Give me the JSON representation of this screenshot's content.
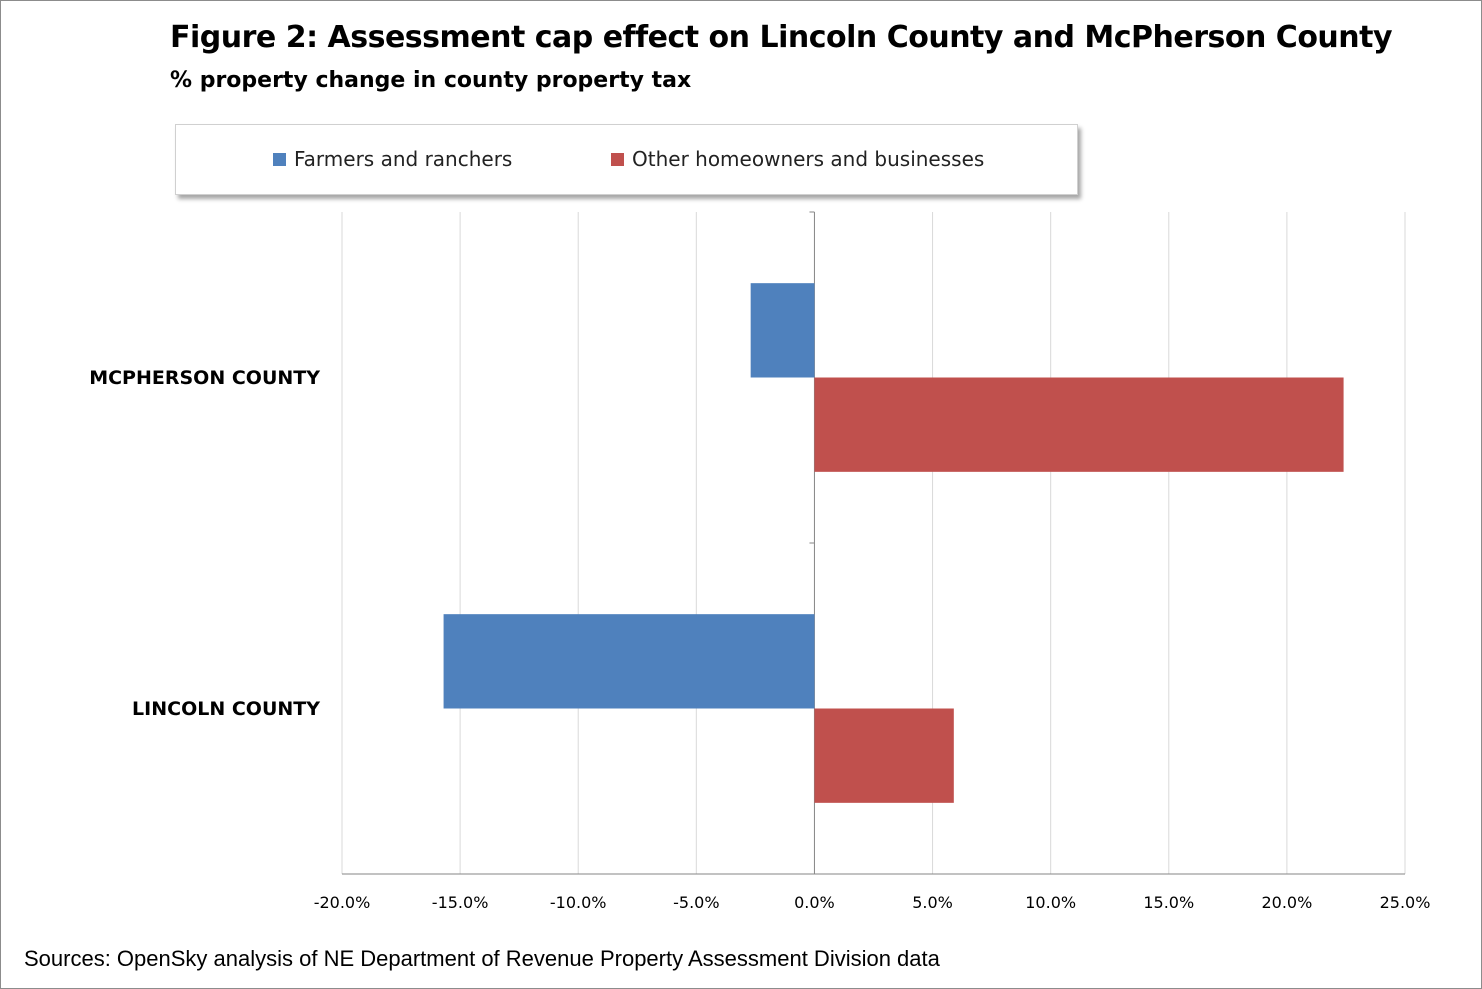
{
  "chart_data": {
    "type": "bar",
    "orientation": "horizontal",
    "title": "Figure 2: Assessment cap effect on Lincoln County and McPherson County",
    "subtitle": "% property change in county property tax",
    "categories": [
      "MCPHERSON COUNTY",
      "LINCOLN COUNTY"
    ],
    "series": [
      {
        "name": "Farmers and ranchers",
        "color": "#4f81bd",
        "values": [
          -2.7,
          -15.7
        ]
      },
      {
        "name": "Other homeowners and businesses",
        "color": "#c0504d",
        "values": [
          22.4,
          5.9
        ]
      }
    ],
    "xlim": [
      -20,
      25
    ],
    "xticks": [
      -20,
      -15,
      -10,
      -5,
      0,
      5,
      10,
      15,
      20,
      25
    ],
    "xtick_labels": [
      "-20.0%",
      "-15.0%",
      "-10.0%",
      "-5.0%",
      "0.0%",
      "5.0%",
      "10.0%",
      "15.0%",
      "20.0%",
      "25.0%"
    ],
    "grid": true,
    "legend_position": "top"
  },
  "source_note": "Sources: OpenSky analysis of NE Department of Revenue Property Assessment Division data"
}
